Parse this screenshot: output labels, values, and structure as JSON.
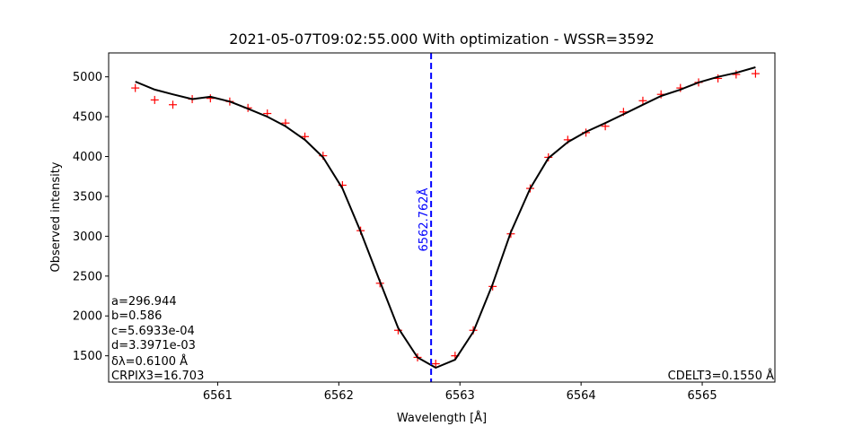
{
  "chart_data": {
    "type": "line",
    "title": "2021-05-07T09:02:55.000 With optimization - WSSR=3592",
    "xlabel": "Wavelength [Å]",
    "ylabel": "Observed intensity",
    "xlim": [
      6560.1,
      6565.6
    ],
    "ylim": [
      1170,
      5300
    ],
    "xticks": [
      6561,
      6562,
      6563,
      6564,
      6565
    ],
    "yticks": [
      1500,
      2000,
      2500,
      3000,
      3500,
      4000,
      4500,
      5000
    ],
    "grid": false,
    "series": [
      {
        "kind": "markers",
        "marker": "+",
        "color": "#ff0000",
        "x": [
          6560.32,
          6560.48,
          6560.63,
          6560.79,
          6560.94,
          6561.1,
          6561.25,
          6561.41,
          6561.56,
          6561.72,
          6561.87,
          6562.03,
          6562.18,
          6562.34,
          6562.49,
          6562.65,
          6562.8,
          6562.96,
          6563.11,
          6563.27,
          6563.42,
          6563.58,
          6563.73,
          6563.89,
          6564.04,
          6564.2,
          6564.35,
          6564.51,
          6564.66,
          6564.82,
          6564.97,
          6565.13,
          6565.28,
          6565.44
        ],
        "y": [
          4860,
          4710,
          4650,
          4720,
          4730,
          4690,
          4610,
          4540,
          4420,
          4250,
          4010,
          3640,
          3070,
          2410,
          1820,
          1480,
          1400,
          1500,
          1820,
          2370,
          3030,
          3600,
          3990,
          4210,
          4300,
          4380,
          4560,
          4700,
          4780,
          4860,
          4930,
          4980,
          5030,
          5040
        ]
      },
      {
        "kind": "line",
        "color": "#000000",
        "x": [
          6560.32,
          6560.48,
          6560.63,
          6560.79,
          6560.94,
          6561.1,
          6561.25,
          6561.41,
          6561.56,
          6561.72,
          6561.87,
          6562.03,
          6562.18,
          6562.34,
          6562.49,
          6562.65,
          6562.8,
          6562.96,
          6563.11,
          6563.27,
          6563.42,
          6563.58,
          6563.73,
          6563.89,
          6564.04,
          6564.2,
          6564.35,
          6564.51,
          6564.66,
          6564.82,
          6564.97,
          6565.13,
          6565.28,
          6565.44
        ],
        "y": [
          4940,
          4840,
          4780,
          4720,
          4750,
          4690,
          4600,
          4500,
          4380,
          4210,
          3990,
          3600,
          3060,
          2430,
          1850,
          1480,
          1350,
          1450,
          1800,
          2400,
          3050,
          3600,
          3980,
          4180,
          4310,
          4420,
          4530,
          4650,
          4760,
          4840,
          4930,
          5000,
          5050,
          5120
        ]
      }
    ],
    "vline": {
      "x": 6562.762,
      "label": "6562.762Å",
      "color": "#0000ff",
      "style": "dashed"
    },
    "annotations": {
      "left": [
        "a=296.944",
        "b=0.586",
        "c=5.6933e-04",
        "d=3.3971e-03",
        "δλ=0.6100 Å",
        "CRPIX3=16.703"
      ],
      "right": "CDELT3=0.1550 Å"
    }
  }
}
